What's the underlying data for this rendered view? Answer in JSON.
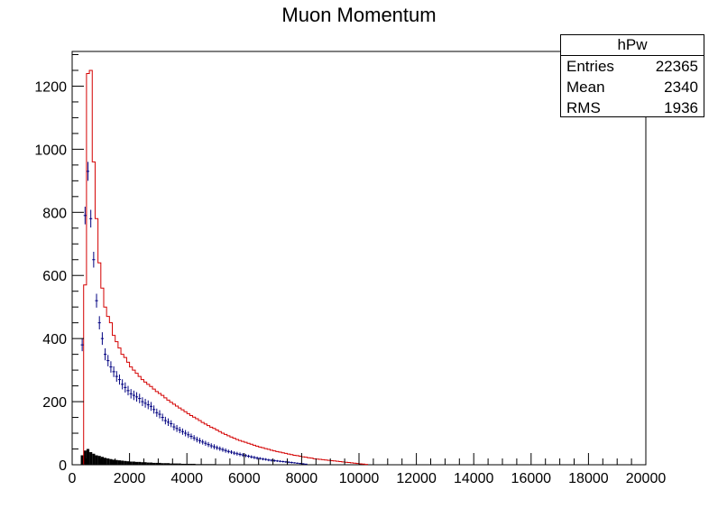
{
  "chart_data": {
    "type": "bar",
    "title": "Muon Momentum",
    "xlabel": "",
    "ylabel": "",
    "xlim": [
      0,
      20000
    ],
    "ylim": [
      0,
      1310
    ],
    "x_ticks": [
      0,
      2000,
      4000,
      6000,
      8000,
      10000,
      12000,
      14000,
      16000,
      18000,
      20000
    ],
    "y_ticks": [
      0,
      200,
      400,
      600,
      800,
      1000,
      1200
    ],
    "bin_width": 100,
    "stats": {
      "name": "hPw",
      "rows": [
        {
          "label": "Entries",
          "value": "22365"
        },
        {
          "label": "Mean",
          "value": "2340"
        },
        {
          "label": "RMS",
          "value": "1936"
        }
      ]
    },
    "series": [
      {
        "style": "step",
        "color": "#d40000",
        "x_start": 300,
        "values": [
          0,
          570,
          1240,
          1250,
          960,
          780,
          640,
          560,
          500,
          470,
          450,
          410,
          390,
          370,
          350,
          340,
          325,
          310,
          300,
          290,
          280,
          270,
          262,
          255,
          248,
          240,
          232,
          226,
          220,
          212,
          205,
          198,
          192,
          186,
          180,
          174,
          168,
          162,
          156,
          151,
          146,
          140,
          134,
          129,
          124,
          119,
          115,
          110,
          105,
          100,
          96,
          92,
          88,
          84,
          80,
          77,
          74,
          71,
          68,
          65,
          62,
          59,
          56,
          54,
          51,
          49,
          46,
          44,
          42,
          40,
          38,
          36,
          34,
          32,
          30,
          29,
          27,
          25,
          24,
          22,
          21,
          19,
          18,
          17,
          16,
          15,
          14,
          13,
          12,
          11,
          10,
          9,
          8,
          7,
          6,
          5,
          4,
          3,
          2,
          1
        ]
      },
      {
        "style": "points",
        "color": "#000080",
        "x_start": 350,
        "values": [
          380,
          790,
          930,
          780,
          650,
          520,
          450,
          400,
          350,
          330,
          310,
          295,
          280,
          270,
          255,
          245,
          235,
          225,
          220,
          215,
          210,
          200,
          195,
          190,
          185,
          175,
          165,
          160,
          150,
          140,
          135,
          130,
          120,
          115,
          110,
          105,
          100,
          95,
          90,
          85,
          80,
          76,
          72,
          68,
          64,
          60,
          57,
          54,
          51,
          48,
          45,
          42,
          40,
          37,
          35,
          33,
          31,
          29,
          27,
          25,
          23,
          21,
          20,
          18,
          17,
          15,
          14,
          13,
          12,
          11,
          10,
          9,
          8,
          7,
          6,
          5,
          4,
          3,
          2
        ],
        "errors": [
          20,
          28,
          30,
          28,
          25,
          22,
          21,
          20,
          19,
          18,
          18,
          17,
          17,
          16,
          16,
          16,
          15,
          15,
          15,
          15,
          15,
          14,
          14,
          14,
          14,
          13,
          13,
          13,
          12,
          12,
          12,
          11,
          11,
          11,
          10,
          10,
          10,
          10,
          9,
          9,
          9,
          9,
          8,
          8,
          8,
          8,
          8,
          7,
          7,
          7,
          7,
          6,
          6,
          6,
          6,
          6,
          6,
          5,
          5,
          5,
          5,
          5,
          4,
          4,
          4,
          4,
          4,
          4,
          3,
          3,
          3,
          3,
          3,
          3,
          2,
          2,
          2,
          2,
          1
        ]
      },
      {
        "style": "filled",
        "color": "#000000",
        "x_start": 300,
        "values": [
          30,
          45,
          50,
          40,
          35,
          30,
          28,
          25,
          22,
          20,
          18,
          16,
          15,
          14,
          13,
          12,
          11,
          10,
          10,
          9,
          9,
          8,
          8,
          7,
          7,
          6,
          6,
          6,
          5,
          5,
          5,
          4,
          4,
          4,
          4,
          3,
          3,
          3,
          3,
          3,
          2,
          2,
          2,
          2,
          2,
          2,
          2,
          1,
          1,
          1,
          1,
          1,
          1,
          1,
          1,
          1,
          1,
          1,
          1,
          1
        ]
      }
    ]
  }
}
